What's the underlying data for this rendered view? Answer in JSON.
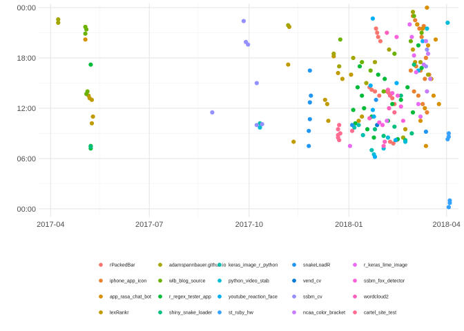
{
  "chart_data": {
    "type": "scatter",
    "xlabel": "",
    "ylabel": "",
    "x_ticks": [
      {
        "date": "2017-04-01",
        "label": "2017-04"
      },
      {
        "date": "2017-07-01",
        "label": "2017-07"
      },
      {
        "date": "2017-10-01",
        "label": "2017-10"
      },
      {
        "date": "2018-01-01",
        "label": "2018-01"
      },
      {
        "date": "2018-04-01",
        "label": "2018-04"
      }
    ],
    "x_minor_ticks": [
      "2017-05-16",
      "2017-08-15",
      "2017-11-15",
      "2018-02-15"
    ],
    "xlim": [
      "2017-03-21",
      "2018-04-12"
    ],
    "y_ticks": [
      {
        "hours": 0,
        "label": "00:00"
      },
      {
        "hours": 6,
        "label": "06:00"
      },
      {
        "hours": 12,
        "label": "12:00"
      },
      {
        "hours": 18,
        "label": "18:00"
      },
      {
        "hours": 24,
        "label": "00:00"
      }
    ],
    "ylim": [
      -1,
      24.5
    ],
    "grid": true,
    "legend_position": "bottom",
    "series": [
      {
        "name": "rPackedBar",
        "color": "#F8766D",
        "points": [
          [
            "2018-01-26",
            21.5
          ],
          [
            "2018-01-27",
            21.0
          ],
          [
            "2018-01-28",
            20.5
          ],
          [
            "2018-01-30",
            20.0
          ],
          [
            "2018-01-20",
            14.5
          ],
          [
            "2018-01-22",
            14.2
          ],
          [
            "2018-01-25",
            14.0
          ],
          [
            "2018-01-29",
            13.5
          ],
          [
            "2018-02-05",
            14.0
          ],
          [
            "2018-02-07",
            13.8
          ],
          [
            "2018-02-10",
            13.2
          ],
          [
            "2018-02-12",
            12.5
          ],
          [
            "2018-02-08",
            8.0
          ],
          [
            "2018-02-11",
            7.8
          ],
          [
            "2018-02-14",
            8.2
          ]
        ]
      },
      {
        "name": "iphone_app_icon",
        "color": "#EA8331",
        "points": [
          [
            "2018-03-01",
            23.0
          ],
          [
            "2018-03-03",
            22.5
          ],
          [
            "2018-03-05",
            22.0
          ],
          [
            "2018-03-07",
            21.5
          ],
          [
            "2018-03-09",
            20.5
          ],
          [
            "2018-03-11",
            21.8
          ],
          [
            "2018-03-13",
            18.0
          ],
          [
            "2018-03-04",
            17.0
          ],
          [
            "2018-03-08",
            16.5
          ],
          [
            "2018-03-12",
            15.5
          ],
          [
            "2018-03-16",
            16.0
          ],
          [
            "2018-03-02",
            14.0
          ],
          [
            "2018-03-06",
            13.5
          ],
          [
            "2018-03-10",
            12.5
          ],
          [
            "2018-02-27",
            16.5
          ],
          [
            "2018-03-14",
            11.5
          ]
        ]
      },
      {
        "name": "app_rasa_chat_bot",
        "color": "#D89000",
        "points": [
          [
            "2017-05-03",
            20.2
          ],
          [
            "2018-03-14",
            24.0
          ],
          [
            "2018-03-05",
            22.0
          ],
          [
            "2018-03-10",
            21.5
          ],
          [
            "2018-03-15",
            19.5
          ],
          [
            "2018-03-18",
            15.5
          ],
          [
            "2018-03-20",
            13.5
          ],
          [
            "2018-03-12",
            12.0
          ],
          [
            "2018-03-22",
            20.2
          ],
          [
            "2018-03-25",
            12.5
          ],
          [
            "2018-03-08",
            10.5
          ],
          [
            "2018-03-13",
            7.5
          ]
        ]
      },
      {
        "name": "lexRankr",
        "color": "#C09B00",
        "points": [
          [
            "2017-05-06",
            13.5
          ],
          [
            "2017-05-07",
            13.2
          ],
          [
            "2017-05-09",
            13.0
          ],
          [
            "2017-05-10",
            11.0
          ],
          [
            "2017-05-09",
            10.2
          ],
          [
            "2017-11-07",
            21.7
          ],
          [
            "2017-11-06",
            17.2
          ],
          [
            "2017-11-11",
            8.0
          ],
          [
            "2017-12-10",
            13.0
          ],
          [
            "2017-12-12",
            12.5
          ],
          [
            "2017-12-13",
            10.5
          ],
          [
            "2017-12-18",
            18.2
          ],
          [
            "2017-12-22",
            16.2
          ],
          [
            "2017-12-26",
            15.5
          ],
          [
            "2018-01-03",
            16.0
          ],
          [
            "2018-01-10",
            10.5
          ],
          [
            "2018-01-13",
            11.0
          ],
          [
            "2018-02-22",
            9.5
          ],
          [
            "2018-03-03",
            17.5
          ],
          [
            "2018-03-01",
            19.0
          ]
        ]
      },
      {
        "name": "adamspannbauer.github.io",
        "color": "#A3A500",
        "points": [
          [
            "2017-04-08",
            22.6
          ],
          [
            "2017-04-08",
            22.2
          ],
          [
            "2017-11-06",
            21.9
          ],
          [
            "2017-12-18",
            18.5
          ],
          [
            "2017-12-23",
            17.0
          ],
          [
            "2018-01-05",
            18.0
          ],
          [
            "2018-01-17",
            15.0
          ],
          [
            "2018-01-25",
            17.5
          ],
          [
            "2018-02-07",
            19.0
          ],
          [
            "2018-02-20",
            8.5
          ],
          [
            "2018-03-01",
            23.5
          ],
          [
            "2018-03-08",
            17.5
          ],
          [
            "2018-03-15",
            16.0
          ]
        ]
      },
      {
        "name": "wlb_blog_source",
        "color": "#6BB100",
        "points": [
          [
            "2017-05-03",
            21.7
          ],
          [
            "2017-05-04",
            21.4
          ],
          [
            "2017-05-03",
            20.9
          ],
          [
            "2017-05-05",
            14.0
          ],
          [
            "2017-05-04",
            13.7
          ],
          [
            "2017-12-24",
            20.2
          ],
          [
            "2018-01-13",
            17.5
          ],
          [
            "2018-01-21",
            16.5
          ],
          [
            "2018-02-02",
            14.0
          ],
          [
            "2018-02-12",
            18.5
          ],
          [
            "2018-02-27",
            20.0
          ],
          [
            "2018-03-02",
            23.0
          ],
          [
            "2018-03-09",
            21.0
          ]
        ]
      },
      {
        "name": "r_regex_tester_app",
        "color": "#00BA38",
        "points": [
          [
            "2017-05-08",
            17.2
          ],
          [
            "2017-05-08",
            7.5
          ],
          [
            "2017-05-08",
            7.2
          ],
          [
            "2018-01-05",
            11.8
          ],
          [
            "2018-01-07",
            10.2
          ],
          [
            "2018-01-09",
            14.5
          ],
          [
            "2018-01-11",
            17.0
          ],
          [
            "2018-01-13",
            13.5
          ],
          [
            "2018-01-15",
            12.0
          ],
          [
            "2018-01-18",
            9.5
          ],
          [
            "2018-01-22",
            11.0
          ],
          [
            "2018-01-24",
            8.5
          ],
          [
            "2018-01-28",
            16.0
          ],
          [
            "2018-02-03",
            15.5
          ],
          [
            "2018-02-06",
            10.5
          ],
          [
            "2018-02-10",
            12.5
          ],
          [
            "2018-02-15",
            8.3
          ],
          [
            "2018-02-18",
            13.0
          ],
          [
            "2018-02-24",
            14.5
          ],
          [
            "2018-03-01",
            11.5
          ],
          [
            "2018-03-06",
            19.5
          ],
          [
            "2018-03-09",
            16.8
          ]
        ]
      },
      {
        "name": "shiny_snake_loader",
        "color": "#00BF7D",
        "points": [
          [
            "2017-05-08",
            7.4
          ],
          [
            "2018-01-25",
            9.5
          ],
          [
            "2018-02-02",
            8.7
          ],
          [
            "2018-02-12",
            9.8
          ],
          [
            "2018-02-22",
            8.2
          ],
          [
            "2018-03-02",
            17.2
          ],
          [
            "2018-02-18",
            13.5
          ],
          [
            "2018-02-28",
            9.0
          ]
        ]
      },
      {
        "name": "keras_image_r_python",
        "color": "#00C0AF",
        "points": [
          [
            "2017-10-11",
            10.2
          ],
          [
            "2018-01-06",
            9.7
          ],
          [
            "2018-01-10",
            10.0
          ],
          [
            "2018-01-14",
            8.8
          ],
          [
            "2018-01-22",
            7.0
          ]
        ]
      },
      {
        "name": "python_video_stab",
        "color": "#00BCD8",
        "points": [
          [
            "2017-10-11",
            9.7
          ],
          [
            "2018-01-24",
            6.5
          ],
          [
            "2018-02-02",
            7.2
          ],
          [
            "2018-02-06",
            8.5
          ],
          [
            "2018-02-22",
            8.0
          ],
          [
            "2018-03-14",
            21.5
          ],
          [
            "2018-04-02",
            22.2
          ]
        ]
      },
      {
        "name": "youtube_reaction_face",
        "color": "#00B0F6",
        "points": [
          [
            "2018-01-23",
            22.7
          ],
          [
            "2018-01-21",
            14.7
          ],
          [
            "2018-01-23",
            11.8
          ],
          [
            "2018-01-24",
            11.0
          ],
          [
            "2018-01-25",
            6.2
          ],
          [
            "2018-02-13",
            8.2
          ],
          [
            "2018-02-14",
            15.0
          ],
          [
            "2018-03-06",
            16.5
          ],
          [
            "2018-03-10",
            20.0
          ]
        ]
      },
      {
        "name": "st_ruby_hw",
        "color": "#35A2FF",
        "points": [
          [
            "2018-04-03",
            9.0
          ],
          [
            "2018-04-03",
            8.6
          ],
          [
            "2018-04-02",
            8.3
          ],
          [
            "2018-04-04",
            1.0
          ],
          [
            "2018-04-04",
            0.7
          ],
          [
            "2018-04-03",
            0.2
          ]
        ]
      },
      {
        "name": "snakeLoadR",
        "color": "#2196F3",
        "points": [
          [
            "2017-11-26",
            16.5
          ],
          [
            "2017-11-27",
            13.5
          ],
          [
            "2017-11-26",
            12.7
          ],
          [
            "2017-11-26",
            10.7
          ],
          [
            "2017-11-25",
            9.3
          ],
          [
            "2017-11-25",
            7.5
          ],
          [
            "2018-01-04",
            10.0
          ],
          [
            "2018-01-26",
            13.0
          ],
          [
            "2018-03-13",
            9.2
          ]
        ]
      },
      {
        "name": "vend_cv",
        "color": "#0079D4",
        "points": [
          [
            "2018-01-27",
            10.0
          ]
        ]
      },
      {
        "name": "ssbm_cv",
        "color": "#9590FF",
        "points": [
          [
            "2017-08-28",
            11.5
          ],
          [
            "2017-09-26",
            22.4
          ],
          [
            "2017-09-28",
            19.9
          ],
          [
            "2017-09-30",
            19.6
          ],
          [
            "2017-10-08",
            15.0
          ],
          [
            "2017-10-08",
            10.0
          ],
          [
            "2017-10-13",
            10.1
          ],
          [
            "2018-03-13",
            17.0
          ],
          [
            "2018-03-14",
            19.0
          ]
        ]
      },
      {
        "name": "ncaa_color_bracket",
        "color": "#C77CFF",
        "points": [
          [
            "2018-03-13",
            20.0
          ],
          [
            "2018-03-15",
            18.5
          ],
          [
            "2018-03-11",
            17.2
          ],
          [
            "2018-03-17",
            15.5
          ],
          [
            "2018-03-14",
            14.0
          ]
        ]
      },
      {
        "name": "r_keras_lime_image",
        "color": "#E76BF3",
        "points": [
          [
            "2018-02-26",
            22.0
          ],
          [
            "2018-02-28",
            20.5
          ],
          [
            "2018-03-02",
            18.3
          ],
          [
            "2018-03-04",
            16.3
          ],
          [
            "2018-03-06",
            12.5
          ],
          [
            "2018-03-08",
            11.0
          ],
          [
            "2018-01-02",
            7.5
          ],
          [
            "2018-02-05",
            10.5
          ]
        ]
      },
      {
        "name": "ssbm_fox_detector",
        "color": "#FA62DB",
        "points": [
          [
            "2018-02-14",
            20.5
          ],
          [
            "2018-02-10",
            13.8
          ],
          [
            "2018-02-15",
            13.5
          ],
          [
            "2018-02-18",
            12.2
          ],
          [
            "2018-02-20",
            10.5
          ],
          [
            "2018-01-29",
            10.3
          ],
          [
            "2018-02-01",
            10.0
          ]
        ]
      },
      {
        "name": "wordcloud2",
        "color": "#FF62BC",
        "points": [
          [
            "2018-02-05",
            21.0
          ],
          [
            "2018-02-06",
            14.2
          ],
          [
            "2018-02-07",
            12.0
          ],
          [
            "2018-02-02",
            7.5
          ],
          [
            "2018-02-03",
            8.0
          ],
          [
            "2018-01-20",
            10.8
          ]
        ]
      },
      {
        "name": "cartel_site_test",
        "color": "#FF6C91",
        "points": [
          [
            "2017-12-23",
            8.2
          ],
          [
            "2017-12-22",
            8.8
          ],
          [
            "2017-12-24",
            9.0
          ],
          [
            "2017-12-22",
            9.5
          ],
          [
            "2017-12-23",
            10.0
          ],
          [
            "2017-12-22",
            8.5
          ],
          [
            "2018-01-04",
            9.3
          ],
          [
            "2018-02-06",
            14.0
          ],
          [
            "2018-02-08",
            13.5
          ],
          [
            "2018-02-12",
            11.5
          ]
        ]
      }
    ]
  }
}
